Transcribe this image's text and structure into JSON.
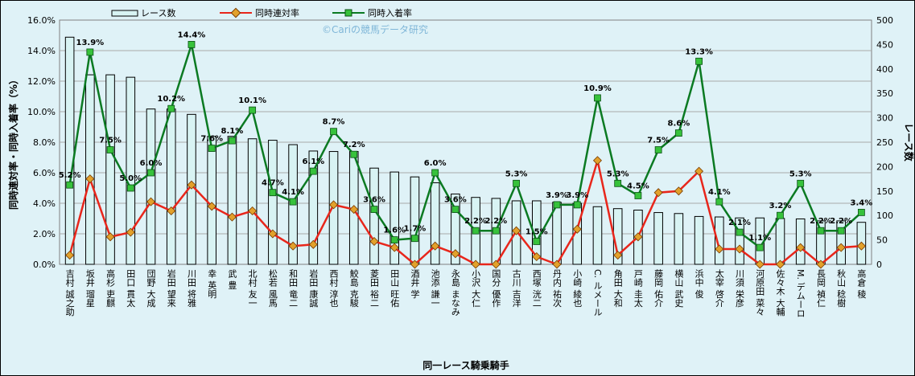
{
  "chart_data": {
    "type": "bar+line",
    "xlabel": "同一レース騎乗騎手",
    "ylabel_left": "同時連対率・同時入着率（%）",
    "ylabel_right": "レース数",
    "ylim_left": [
      0,
      16
    ],
    "ylim_right": [
      0,
      500
    ],
    "left_ticks": [
      "0.0%",
      "2.0%",
      "4.0%",
      "6.0%",
      "8.0%",
      "10.0%",
      "12.0%",
      "14.0%",
      "16.0%"
    ],
    "right_ticks": [
      "0",
      "50",
      "100",
      "150",
      "200",
      "250",
      "300",
      "350",
      "400",
      "450",
      "500"
    ],
    "watermark": "©Cariの競馬データ研究",
    "legend_position": "top",
    "grid": true,
    "colors": {
      "background": "#dff2f7",
      "bar_fill": "#d8f3f3",
      "bar_stroke": "#000000",
      "rentai_line": "#e8261b",
      "rentai_marker": "#e2a12b",
      "nyuchaku_line": "#0b7a22",
      "nyuchaku_marker": "#37c23b"
    },
    "categories": [
      "吉村 誠之助",
      "坂井 瑠星",
      "高杉 吏麒",
      "田口 貫太",
      "団野 大成",
      "岩田 望来",
      "川田 将雅",
      "幸 英明",
      "武 豊",
      "北村 友一",
      "松若 風馬",
      "和田 竜二",
      "岩田 康誠",
      "西村 淳也",
      "鮫島 克駿",
      "菱田 裕二",
      "田山 旺佑",
      "酒井 学",
      "池添 謙一",
      "永島 まなみ",
      "小沢 大仁",
      "国分 優作",
      "古川 吉洋",
      "西塚 洸二",
      "丹内 祐次",
      "小崎 綾也",
      "C. ルメール",
      "角田 大和",
      "戸崎 圭太",
      "藤岡 佑介",
      "横山 武史",
      "浜中 俊",
      "太宰 啓介",
      "川須 栄彦",
      "河原田 菜々",
      "佐々木 大輔",
      "M. デムーロ",
      "長岡 禎仁",
      "秋山 稔樹",
      "高倉 稜"
    ],
    "series": [
      {
        "name": "レース数",
        "kind": "bar",
        "axis": "right",
        "values": [
          465,
          388,
          388,
          383,
          318,
          318,
          307,
          262,
          262,
          257,
          254,
          245,
          232,
          231,
          231,
          197,
          189,
          179,
          167,
          144,
          137,
          135,
          130,
          130,
          127,
          125,
          118,
          114,
          111,
          106,
          104,
          98,
          97,
          95,
          95,
          94,
          93,
          89,
          89,
          86
        ]
      },
      {
        "name": "同時連対率",
        "kind": "line",
        "axis": "left",
        "values": [
          0.6,
          5.6,
          1.8,
          2.1,
          4.1,
          3.5,
          5.2,
          3.8,
          3.1,
          3.5,
          2.0,
          1.2,
          1.3,
          3.9,
          3.6,
          1.5,
          1.1,
          0.0,
          1.2,
          0.7,
          0.0,
          0.0,
          2.2,
          0.5,
          0.0,
          2.3,
          6.8,
          0.6,
          1.8,
          4.7,
          4.8,
          6.1,
          1.0,
          1.0,
          0.0,
          0.0,
          1.1,
          0.0,
          1.1,
          1.2
        ]
      },
      {
        "name": "同時入着率",
        "kind": "line",
        "axis": "left",
        "values": [
          5.2,
          13.9,
          7.5,
          5.0,
          6.0,
          10.2,
          14.4,
          7.6,
          8.1,
          10.1,
          4.7,
          4.1,
          6.1,
          8.7,
          7.2,
          3.6,
          1.6,
          1.7,
          6.0,
          3.6,
          2.2,
          2.2,
          5.3,
          1.5,
          3.9,
          3.9,
          10.9,
          5.3,
          4.5,
          7.5,
          8.6,
          13.3,
          4.1,
          2.1,
          1.1,
          3.2,
          5.3,
          2.2,
          2.2,
          3.4
        ],
        "labels": [
          "5.2%",
          "13.9%",
          "7.5%",
          "5.0%",
          "6.0%",
          "10.2%",
          "14.4%",
          "7.6%",
          "8.1%",
          "10.1%",
          "4.7%",
          "4.1%",
          "6.1%",
          "8.7%",
          "7.2%",
          "3.6%",
          "1.6%",
          "1.7%",
          "6.0%",
          "3.6%",
          "2.2%",
          "2.2%",
          "5.3%",
          "1.5%",
          "3.9%",
          "3.9%",
          "10.9%",
          "5.3%",
          "4.5%",
          "7.5%",
          "8.6%",
          "13.3%",
          "4.1%",
          "2.1%",
          "1.1%",
          "3.2%",
          "5.3%",
          "2.2%",
          "2.2%",
          "3.4%"
        ]
      }
    ]
  }
}
